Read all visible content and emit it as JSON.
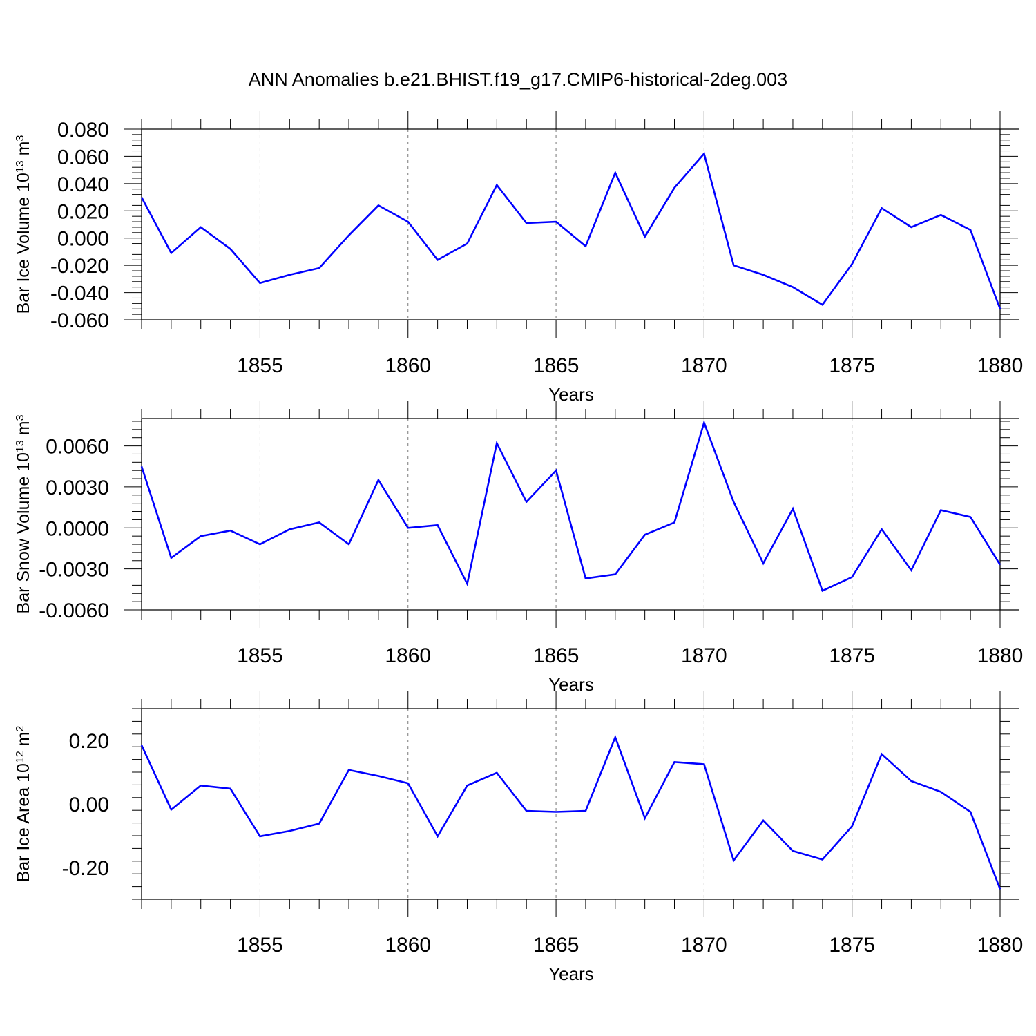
{
  "title": "ANN Anomalies b.e21.BHIST.f19_g17.CMIP6-historical-2deg.003",
  "line_color": "#0000ff",
  "chart_data": [
    {
      "type": "line",
      "ylabel": {
        "base": "Bar Ice Volume 10",
        "exp": "13",
        "unit": " m",
        "unit_exp": "3"
      },
      "xlabel": "Years",
      "xlim": [
        1851,
        1880
      ],
      "ylim": [
        -0.06,
        0.08
      ],
      "yticks": [
        -0.06,
        -0.04,
        -0.02,
        0.0,
        0.02,
        0.04,
        0.06,
        0.08
      ],
      "ytick_labels": [
        "-0.060",
        "-0.040",
        "-0.020",
        "0.000",
        "0.020",
        "0.040",
        "0.060",
        "0.080"
      ],
      "xticks": [
        1855,
        1860,
        1865,
        1870,
        1875,
        1880
      ],
      "xtick_labels": [
        "1855",
        "1860",
        "1865",
        "1870",
        "1875",
        "1880"
      ],
      "grid": "vertical dashed at major x ticks",
      "series": [
        {
          "x": [
            1851,
            1852,
            1853,
            1854,
            1855,
            1856,
            1857,
            1858,
            1859,
            1860,
            1861,
            1862,
            1863,
            1864,
            1865,
            1866,
            1867,
            1868,
            1869,
            1870,
            1871,
            1872,
            1873,
            1874,
            1875,
            1876,
            1877,
            1878,
            1879,
            1880
          ],
          "values": [
            0.03,
            -0.011,
            0.008,
            -0.008,
            -0.033,
            -0.027,
            -0.022,
            0.002,
            0.024,
            0.012,
            -0.016,
            -0.004,
            0.039,
            0.011,
            0.012,
            -0.006,
            0.048,
            0.001,
            0.037,
            0.062,
            -0.02,
            -0.027,
            -0.036,
            -0.049,
            -0.019,
            0.022,
            0.008,
            0.017,
            0.006,
            -0.052
          ]
        }
      ]
    },
    {
      "type": "line",
      "ylabel": {
        "base": "Bar Snow Volume 10",
        "exp": "13",
        "unit": " m",
        "unit_exp": "3"
      },
      "xlabel": "Years",
      "xlim": [
        1851,
        1880
      ],
      "ylim": [
        -0.006,
        0.008
      ],
      "yticks": [
        -0.006,
        -0.003,
        0.0,
        0.003,
        0.006
      ],
      "ytick_labels": [
        "-0.0060",
        "-0.0030",
        "0.0000",
        "0.0030",
        "0.0060"
      ],
      "xticks": [
        1855,
        1860,
        1865,
        1870,
        1875,
        1880
      ],
      "xtick_labels": [
        "1855",
        "1860",
        "1865",
        "1870",
        "1875",
        "1880"
      ],
      "grid": "vertical dashed at major x ticks",
      "series": [
        {
          "x": [
            1851,
            1852,
            1853,
            1854,
            1855,
            1856,
            1857,
            1858,
            1859,
            1860,
            1861,
            1862,
            1863,
            1864,
            1865,
            1866,
            1867,
            1868,
            1869,
            1870,
            1871,
            1872,
            1873,
            1874,
            1875,
            1876,
            1877,
            1878,
            1879,
            1880
          ],
          "values": [
            0.0045,
            -0.0022,
            -0.0006,
            -0.0002,
            -0.0012,
            -0.0001,
            0.0004,
            -0.0012,
            0.0035,
            0.0,
            0.0002,
            -0.0041,
            0.0062,
            0.0019,
            0.0042,
            -0.0037,
            -0.0034,
            -0.0005,
            0.0004,
            0.0077,
            0.0019,
            -0.0026,
            0.0014,
            -0.0046,
            -0.0036,
            -0.0001,
            -0.0031,
            0.0013,
            0.0008,
            -0.0027
          ]
        }
      ]
    },
    {
      "type": "line",
      "ylabel": {
        "base": "Bar Ice Area 10",
        "exp": "12",
        "unit": " m",
        "unit_exp": "2"
      },
      "xlabel": "Years",
      "xlim": [
        1851,
        1880
      ],
      "ylim": [
        -0.3,
        0.3
      ],
      "yticks": [
        -0.2,
        0.0,
        0.2
      ],
      "ytick_labels": [
        "-0.20",
        "0.00",
        "0.20"
      ],
      "xticks": [
        1855,
        1860,
        1865,
        1870,
        1875,
        1880
      ],
      "xtick_labels": [
        "1855",
        "1860",
        "1865",
        "1870",
        "1875",
        "1880"
      ],
      "grid": "vertical dashed at major x ticks",
      "series": [
        {
          "x": [
            1851,
            1852,
            1853,
            1854,
            1855,
            1856,
            1857,
            1858,
            1859,
            1860,
            1861,
            1862,
            1863,
            1864,
            1865,
            1866,
            1867,
            1868,
            1869,
            1870,
            1871,
            1872,
            1873,
            1874,
            1875,
            1876,
            1877,
            1878,
            1879,
            1880
          ],
          "values": [
            0.185,
            -0.018,
            0.058,
            0.048,
            -0.102,
            -0.085,
            -0.062,
            0.107,
            0.088,
            0.065,
            -0.102,
            0.058,
            0.098,
            -0.022,
            -0.025,
            -0.022,
            0.21,
            -0.045,
            0.132,
            0.125,
            -0.178,
            -0.052,
            -0.148,
            -0.175,
            -0.07,
            0.157,
            0.072,
            0.038,
            -0.025,
            -0.268
          ]
        }
      ]
    }
  ]
}
